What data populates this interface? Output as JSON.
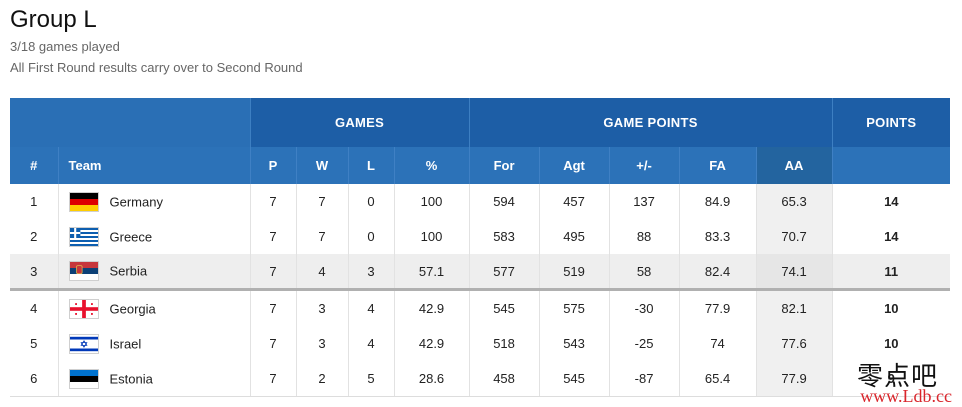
{
  "header": {
    "title": "Group L",
    "games_played": "3/18 games played",
    "note": "All First Round results carry over to Second Round"
  },
  "table": {
    "group_headers": {
      "games": "GAMES",
      "game_points": "GAME POINTS",
      "points": "POINTS"
    },
    "columns": [
      "#",
      "Team",
      "P",
      "W",
      "L",
      "%",
      "For",
      "Agt",
      "+/-",
      "FA",
      "AA",
      ""
    ],
    "rows": [
      {
        "rank": "1",
        "team": "Germany",
        "flag": "germany-flag-icon",
        "p": "7",
        "w": "7",
        "l": "0",
        "pct": "100",
        "for": "594",
        "agt": "457",
        "diff": "137",
        "fa": "84.9",
        "aa": "65.3",
        "pts": "14"
      },
      {
        "rank": "2",
        "team": "Greece",
        "flag": "greece-flag-icon",
        "p": "7",
        "w": "7",
        "l": "0",
        "pct": "100",
        "for": "583",
        "agt": "495",
        "diff": "88",
        "fa": "83.3",
        "aa": "70.7",
        "pts": "14"
      },
      {
        "rank": "3",
        "team": "Serbia",
        "flag": "serbia-flag-icon",
        "p": "7",
        "w": "4",
        "l": "3",
        "pct": "57.1",
        "for": "577",
        "agt": "519",
        "diff": "58",
        "fa": "82.4",
        "aa": "74.1",
        "pts": "11"
      },
      {
        "rank": "4",
        "team": "Georgia",
        "flag": "georgia-flag-icon",
        "p": "7",
        "w": "3",
        "l": "4",
        "pct": "42.9",
        "for": "545",
        "agt": "575",
        "diff": "-30",
        "fa": "77.9",
        "aa": "82.1",
        "pts": "10"
      },
      {
        "rank": "5",
        "team": "Israel",
        "flag": "israel-flag-icon",
        "p": "7",
        "w": "3",
        "l": "4",
        "pct": "42.9",
        "for": "518",
        "agt": "543",
        "diff": "-25",
        "fa": "74",
        "aa": "77.6",
        "pts": "10"
      },
      {
        "rank": "6",
        "team": "Estonia",
        "flag": "estonia-flag-icon",
        "p": "7",
        "w": "2",
        "l": "5",
        "pct": "28.6",
        "for": "458",
        "agt": "545",
        "diff": "-87",
        "fa": "65.4",
        "aa": "77.9",
        "pts": "9"
      }
    ]
  },
  "watermark": {
    "chinese": "零点吧",
    "url": "www.Ldb.cc"
  },
  "colors": {
    "header_dark": "#1d5ea6",
    "header_light": "#2c72b8",
    "divider": "#b0b0b0",
    "watermark_url": "#d9262c"
  }
}
